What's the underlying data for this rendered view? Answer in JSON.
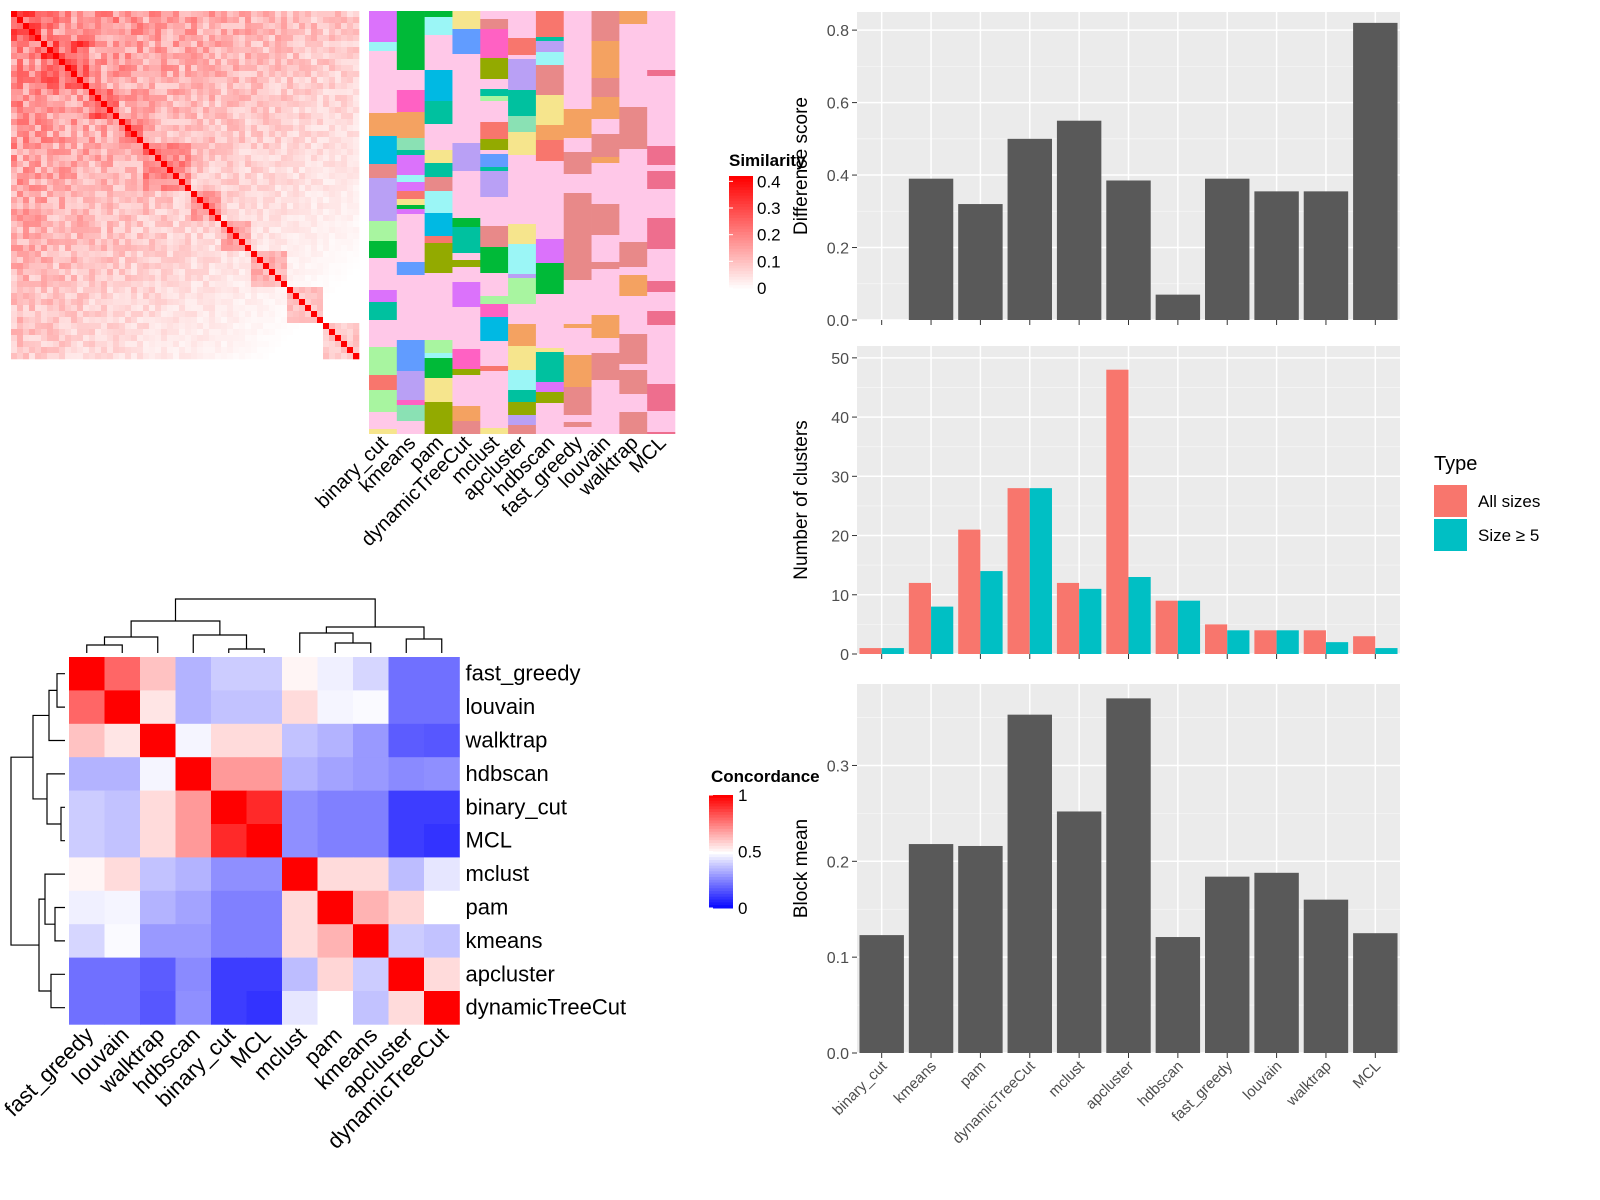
{
  "chart_data": [
    {
      "type": "heatmap",
      "panel": "similarity-heatmap",
      "legend": {
        "title": "Similarity",
        "ticks": [
          "0",
          "0.1",
          "0.2",
          "0.3",
          "0.4"
        ],
        "range": [
          0,
          0.42
        ]
      },
      "annotation_columns": [
        "binary_cut",
        "kmeans",
        "pam",
        "dynamicTreeCut",
        "mclust",
        "apcluster",
        "hdbscan",
        "fast_greedy",
        "louvain",
        "walktrap",
        "MCL"
      ]
    },
    {
      "type": "heatmap",
      "panel": "concordance-heatmap",
      "methods": [
        "fast_greedy",
        "louvain",
        "walktrap",
        "hdbscan",
        "binary_cut",
        "MCL",
        "mclust",
        "pam",
        "kmeans",
        "apcluster",
        "dynamicTreeCut"
      ],
      "legend": {
        "title": "Concordance",
        "ticks": [
          "0",
          "0.5",
          "1"
        ],
        "range": [
          0,
          1
        ]
      },
      "values": [
        [
          1.0,
          0.8,
          0.62,
          0.35,
          0.4,
          0.4,
          0.52,
          0.47,
          0.42,
          0.22,
          0.22
        ],
        [
          0.8,
          1.0,
          0.55,
          0.35,
          0.38,
          0.38,
          0.57,
          0.48,
          0.49,
          0.22,
          0.22
        ],
        [
          0.62,
          0.55,
          1.0,
          0.48,
          0.57,
          0.57,
          0.38,
          0.35,
          0.3,
          0.18,
          0.17
        ],
        [
          0.35,
          0.35,
          0.48,
          1.0,
          0.7,
          0.7,
          0.35,
          0.32,
          0.3,
          0.27,
          0.28
        ],
        [
          0.4,
          0.38,
          0.57,
          0.7,
          1.0,
          0.92,
          0.28,
          0.25,
          0.25,
          0.12,
          0.12
        ],
        [
          0.4,
          0.38,
          0.57,
          0.7,
          0.92,
          1.0,
          0.28,
          0.25,
          0.25,
          0.12,
          0.1
        ],
        [
          0.52,
          0.57,
          0.38,
          0.35,
          0.28,
          0.28,
          1.0,
          0.57,
          0.57,
          0.37,
          0.45
        ],
        [
          0.47,
          0.48,
          0.35,
          0.32,
          0.25,
          0.25,
          0.57,
          1.0,
          0.65,
          0.58,
          0.5
        ],
        [
          0.42,
          0.49,
          0.3,
          0.3,
          0.25,
          0.25,
          0.57,
          0.65,
          1.0,
          0.4,
          0.38
        ],
        [
          0.22,
          0.22,
          0.18,
          0.27,
          0.12,
          0.12,
          0.37,
          0.58,
          0.4,
          1.0,
          0.57
        ],
        [
          0.22,
          0.22,
          0.17,
          0.28,
          0.12,
          0.1,
          0.45,
          0.5,
          0.38,
          0.57,
          1.0
        ]
      ]
    },
    {
      "type": "bar",
      "panel": "difference-score",
      "ylabel": "Difference score",
      "ylim": [
        0,
        0.85
      ],
      "yticks": [
        "0.0",
        "0.2",
        "0.4",
        "0.6",
        "0.8"
      ],
      "categories": [
        "binary_cut",
        "kmeans",
        "pam",
        "dynamicTreeCut",
        "mclust",
        "apcluster",
        "hdbscan",
        "fast_greedy",
        "louvain",
        "walktrap",
        "MCL"
      ],
      "values": [
        0.0,
        0.39,
        0.32,
        0.5,
        0.55,
        0.385,
        0.07,
        0.39,
        0.355,
        0.355,
        0.82
      ]
    },
    {
      "type": "bar",
      "panel": "number-of-clusters",
      "ylabel": "Number of clusters",
      "ylim": [
        0,
        52
      ],
      "yticks": [
        "0",
        "10",
        "20",
        "30",
        "40",
        "50"
      ],
      "categories": [
        "binary_cut",
        "kmeans",
        "pam",
        "dynamicTreeCut",
        "mclust",
        "apcluster",
        "hdbscan",
        "fast_greedy",
        "louvain",
        "walktrap",
        "MCL"
      ],
      "legend": {
        "title": "Type",
        "placement": "right"
      },
      "series": [
        {
          "name": "All sizes",
          "color": "#F8766D",
          "values": [
            1,
            12,
            21,
            28,
            12,
            48,
            9,
            5,
            4,
            4,
            3
          ]
        },
        {
          "name": "Size ≥ 5",
          "color": "#00BFC4",
          "values": [
            1,
            8,
            14,
            28,
            11,
            13,
            9,
            4,
            4,
            2,
            1
          ]
        }
      ]
    },
    {
      "type": "bar",
      "panel": "block-mean",
      "ylabel": "Block mean",
      "ylim": [
        0,
        0.385
      ],
      "yticks": [
        "0.0",
        "0.1",
        "0.2",
        "0.3"
      ],
      "categories": [
        "binary_cut",
        "kmeans",
        "pam",
        "dynamicTreeCut",
        "mclust",
        "apcluster",
        "hdbscan",
        "fast_greedy",
        "louvain",
        "walktrap",
        "MCL"
      ],
      "values": [
        0.123,
        0.218,
        0.216,
        0.353,
        0.252,
        0.37,
        0.121,
        0.184,
        0.188,
        0.16,
        0.125
      ]
    }
  ]
}
